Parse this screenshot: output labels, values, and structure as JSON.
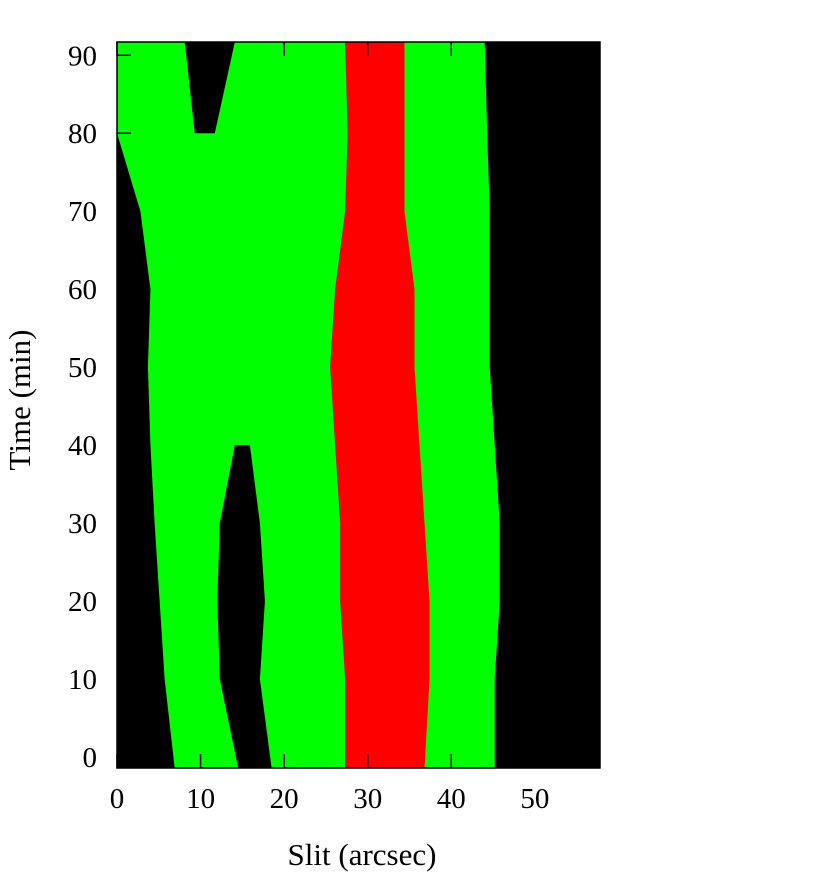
{
  "chart_data": {
    "type": "band-map",
    "xlabel": "Slit   (arcsec)",
    "ylabel": "Time   (min)",
    "xlim": [
      0,
      57.8
    ],
    "ylim": [
      -1.4,
      91.7
    ],
    "xticks": [
      0,
      10,
      20,
      30,
      40,
      50
    ],
    "yticks": [
      0,
      10,
      20,
      30,
      40,
      50,
      60,
      70,
      80,
      90
    ],
    "background": "#000000",
    "t": [
      -1.4,
      10,
      20,
      30,
      40,
      50,
      60,
      70,
      80,
      91.7
    ],
    "bands": [
      {
        "color": "#00ff00",
        "left": [
          6.9,
          5.7,
          5.1,
          4.5,
          4.0,
          3.7,
          4.0,
          2.8,
          0,
          0
        ],
        "right": [
          45.2,
          45.2,
          45.8,
          45.8,
          45.2,
          44.6,
          44.6,
          44.6,
          44.3,
          44.0
        ]
      },
      {
        "color": "#ff0000",
        "left": [
          27.3,
          27.3,
          26.7,
          26.7,
          26.1,
          25.5,
          26.1,
          27.3,
          27.6,
          27.3
        ],
        "right": [
          36.8,
          37.4,
          37.4,
          36.8,
          36.2,
          35.6,
          35.6,
          34.4,
          34.4,
          34.4
        ]
      },
      {
        "color": "#000000",
        "left": [
          14.5,
          12.3,
          12.0,
          12.3,
          14.1,
          null,
          null,
          null,
          9.3,
          8.1
        ],
        "right": [
          18.5,
          17.1,
          17.7,
          17.1,
          15.9,
          null,
          null,
          null,
          11.7,
          14.1
        ]
      }
    ]
  }
}
